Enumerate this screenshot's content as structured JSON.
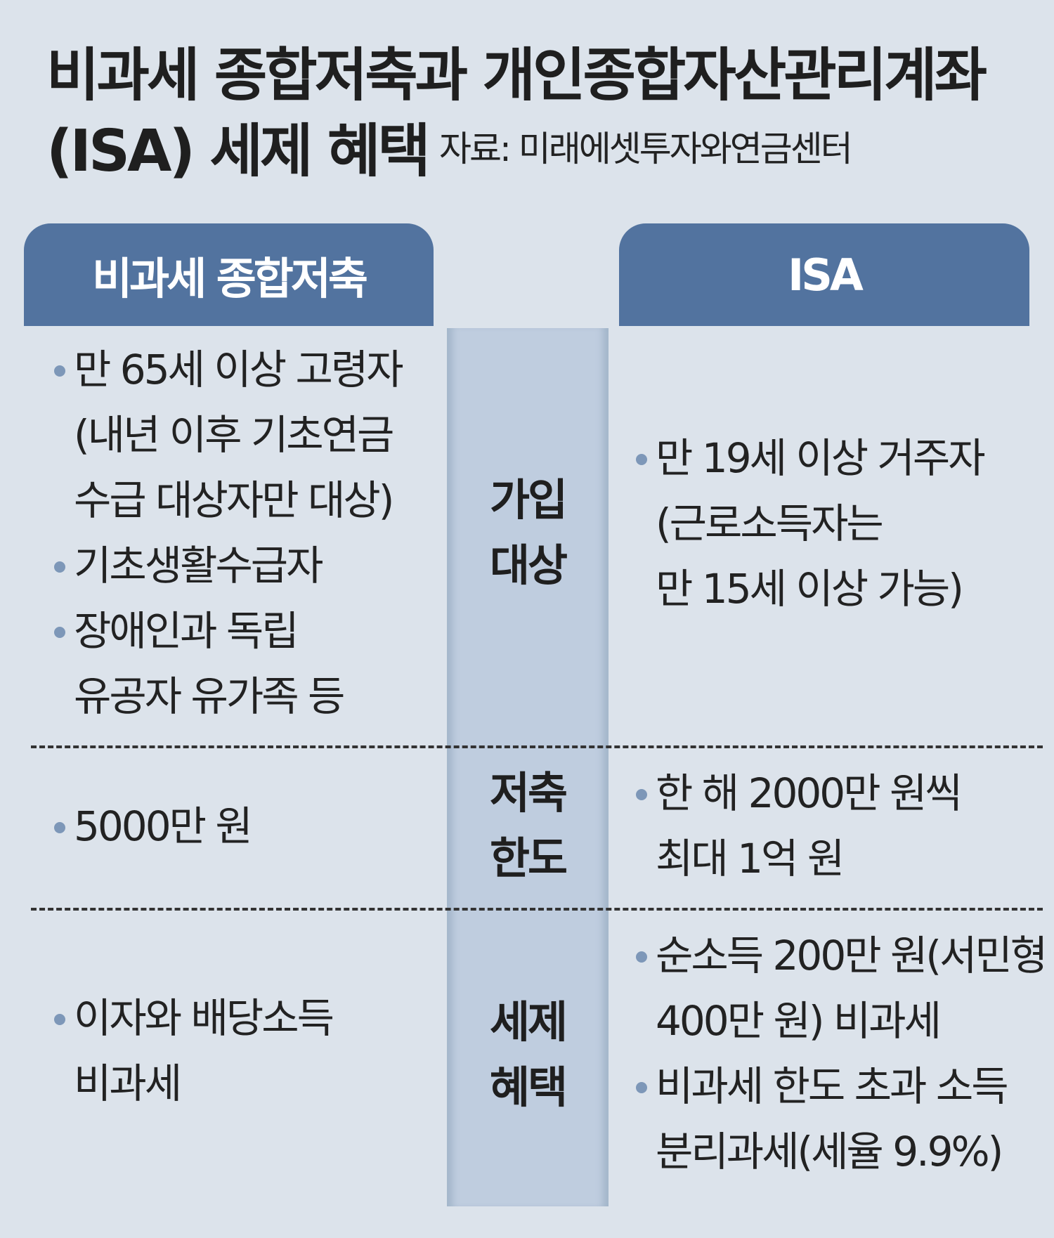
{
  "title": {
    "line1": "비과세 종합저축과 개인종합자산관리계좌",
    "line2": "(ISA) 세제 혜택",
    "source": "자료: 미래에셋투자와연금센터"
  },
  "headers": {
    "left": "비과세 종합저축",
    "right": "ISA"
  },
  "colors": {
    "header": "#52739f",
    "middle_column": "#bfcddf",
    "background": "#dce3eb",
    "bullet": "#7d97b8"
  },
  "rows": [
    {
      "label": [
        "가입",
        "대상"
      ],
      "left": [
        {
          "lines": [
            "만 65세 이상 고령자",
            "(내년 이후 기초연금",
            "수급 대상자만 대상)"
          ]
        },
        {
          "lines": [
            "기초생활수급자"
          ]
        },
        {
          "lines": [
            "장애인과 독립",
            "유공자 유가족 등"
          ]
        }
      ],
      "right": [
        {
          "lines": [
            "만 19세 이상 거주자",
            "(근로소득자는",
            "만 15세 이상 가능)"
          ]
        }
      ]
    },
    {
      "label": [
        "저축",
        "한도"
      ],
      "left": [
        {
          "lines": [
            "5000만 원"
          ]
        }
      ],
      "right": [
        {
          "lines": [
            "한 해 2000만 원씩",
            "최대 1억 원"
          ]
        }
      ]
    },
    {
      "label": [
        "세제",
        "혜택"
      ],
      "left": [
        {
          "lines": [
            "이자와 배당소득",
            "비과세"
          ]
        }
      ],
      "right": [
        {
          "lines": [
            "순소득 200만 원(서민형",
            "400만 원) 비과세"
          ]
        },
        {
          "lines": [
            "비과세 한도 초과 소득",
            "분리과세(세율 9.9%)"
          ]
        }
      ]
    }
  ]
}
